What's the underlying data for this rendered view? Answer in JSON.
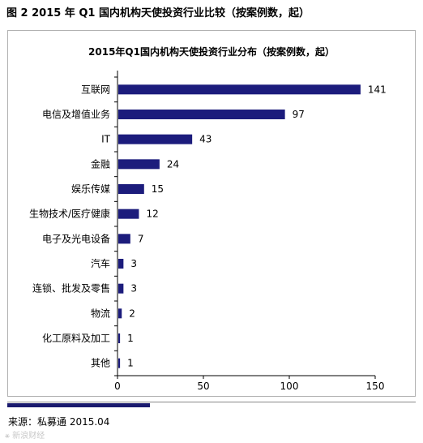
{
  "figure_title": "图 2 2015 年 Q1 国内机构天使投资行业比较（按案例数，起）",
  "source": "来源：私募通   2015.04",
  "watermark": "⚹ 新浪财经",
  "chart_data": {
    "type": "bar",
    "orientation": "horizontal",
    "title": "2015年Q1国内机构天使投资行业分布（按案例数，起）",
    "categories": [
      "互联网",
      "电信及增值业务",
      "IT",
      "金融",
      "娱乐传媒",
      "生物技术/医疗健康",
      "电子及光电设备",
      "汽车",
      "连锁、批发及零售",
      "物流",
      "化工原料及加工",
      "其他"
    ],
    "values": [
      141,
      97,
      43,
      24,
      15,
      12,
      7,
      3,
      3,
      2,
      1,
      1
    ],
    "xlim": [
      0,
      150
    ],
    "xticks": [
      0,
      50,
      100,
      150
    ],
    "bar_color": "#1c1c7c",
    "grid": false,
    "legend": "none"
  }
}
